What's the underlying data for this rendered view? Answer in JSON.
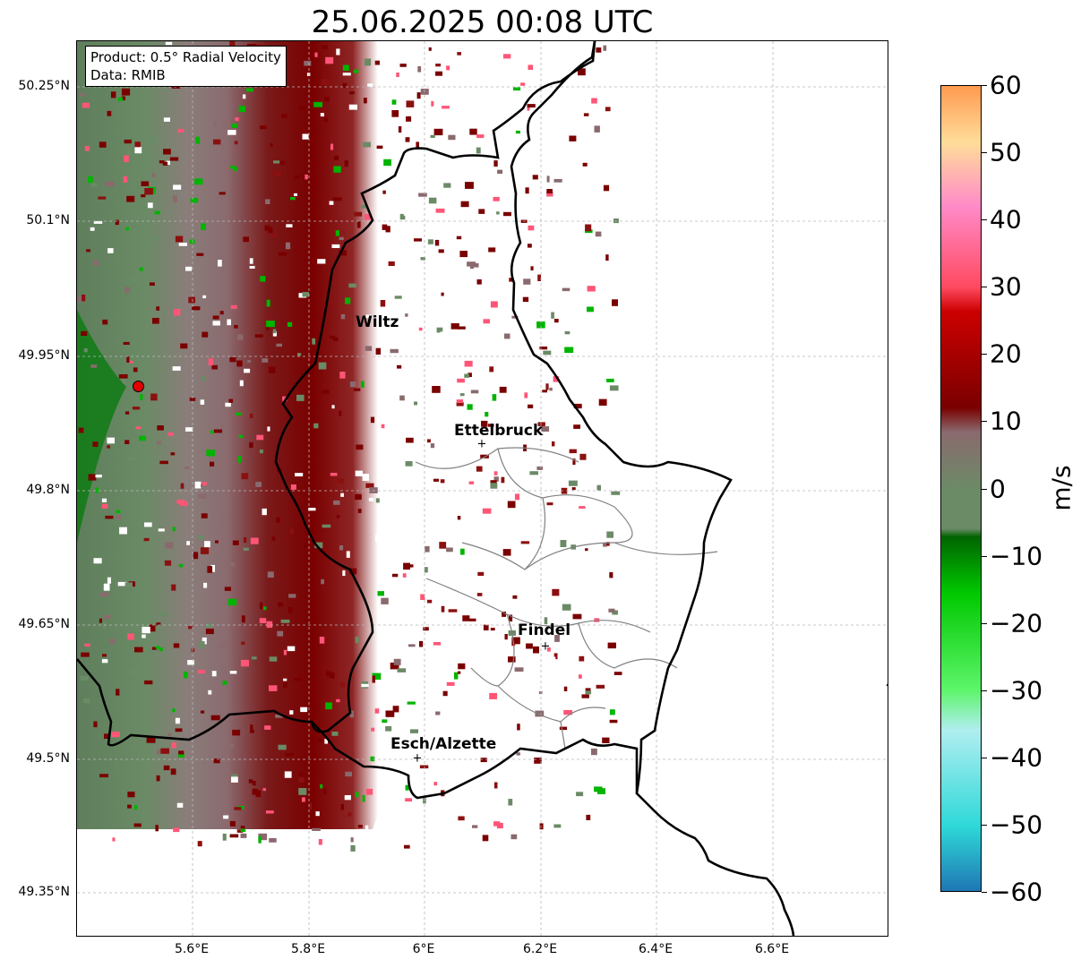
{
  "title": "25.06.2025 00:08 UTC",
  "info_box": {
    "product": "Product: 0.5° Radial Velocity",
    "data": "Data: RMIB"
  },
  "lat_labels": [
    "50.25°N",
    "50.1°N",
    "49.95°N",
    "49.8°N",
    "49.65°N",
    "49.5°N",
    "49.35°N"
  ],
  "lon_labels": [
    "5.6°E",
    "5.8°E",
    "6°E",
    "6.2°E",
    "6.4°E",
    "6.6°E"
  ],
  "cities": [
    {
      "name": "Wiltz"
    },
    {
      "name": "Ettelbruck"
    },
    {
      "name": "Findel"
    },
    {
      "name": "Esch/Alzette"
    }
  ],
  "colorbar": {
    "unit": "m/s",
    "ticks": [
      "60",
      "50",
      "40",
      "30",
      "20",
      "10",
      "0",
      "−10",
      "−20",
      "−30",
      "−40",
      "−50",
      "−60"
    ],
    "range": [
      -60,
      60
    ],
    "colors": {
      "neg60": "#1f77b4",
      "neg50": "#2ed8d8",
      "neg40": "#b0eef0",
      "neg30": "#5df56a",
      "neg20": "#00c800",
      "neg10": "#006400",
      "zero": "#6b8a66",
      "pos5": "#8a6a6e",
      "pos10": "#7a0000",
      "pos20": "#cc0000",
      "pos30": "#ff4a60",
      "pos40": "#ff8ac8",
      "pos50": "#ffdd99",
      "pos60": "#ff9a50"
    }
  },
  "radar_marker_color": "#e00000"
}
